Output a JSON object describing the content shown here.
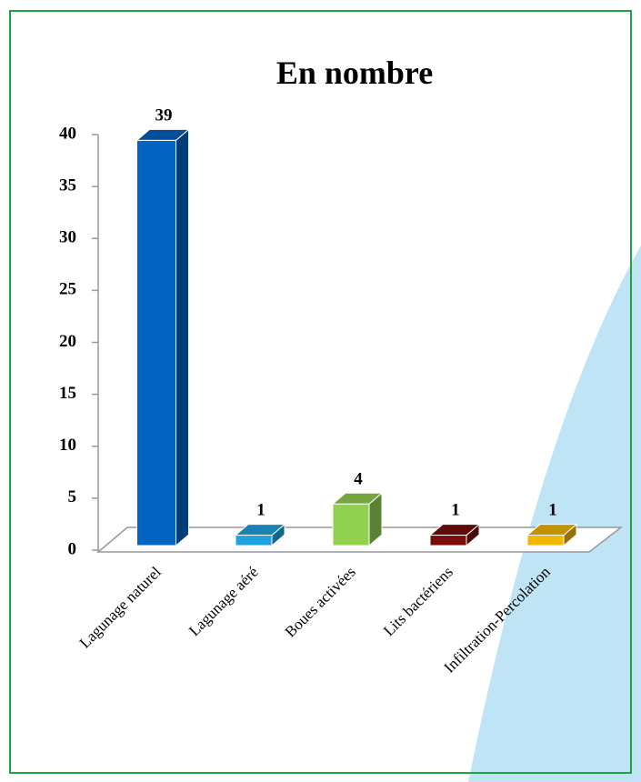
{
  "chart_data": {
    "type": "bar",
    "title": "En nombre",
    "categories": [
      "Lagunage naturel",
      "Lagunage aéré",
      "Boues activées",
      "Lits bactériens",
      "Infiltration-Percolation"
    ],
    "values": [
      39,
      1,
      4,
      1,
      1
    ],
    "colors": [
      "#0563c1",
      "#1fa3e0",
      "#92d050",
      "#7a0c0c",
      "#f2b700"
    ],
    "ylim": [
      0,
      40
    ],
    "yticks": [
      0,
      5,
      10,
      15,
      20,
      25,
      30,
      35,
      40
    ]
  }
}
